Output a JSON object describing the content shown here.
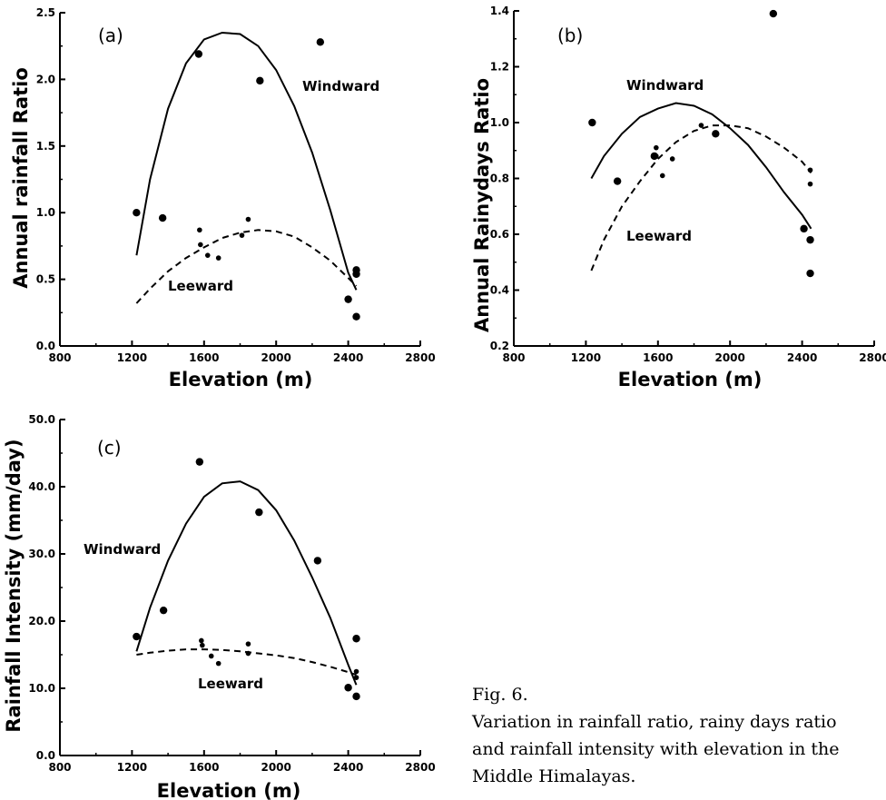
{
  "chart_data": [
    {
      "type": "scatter",
      "panel": "(a)",
      "xlabel": "Elevation (m)",
      "ylabel": "Annual rainfall Ratio",
      "xlim": [
        800,
        2800
      ],
      "ylim": [
        0,
        2.5
      ],
      "xticks": [
        800,
        1200,
        1600,
        2000,
        2400,
        2800
      ],
      "yticks": [
        0,
        0.5,
        1,
        1.5,
        2,
        2.5
      ],
      "ytick_labels": [
        "0.0",
        "0.5",
        "1.0",
        "1.5",
        "2.0",
        "2.5"
      ],
      "series": [
        {
          "name": "Windward",
          "marker": "large-dot",
          "line": "solid",
          "points": [
            [
              1225,
              1.0
            ],
            [
              1370,
              0.96
            ],
            [
              1570,
              2.19
            ],
            [
              1910,
              1.99
            ],
            [
              2245,
              2.28
            ],
            [
              2400,
              0.35
            ],
            [
              2445,
              0.57
            ],
            [
              2445,
              0.54
            ],
            [
              2445,
              0.22
            ]
          ],
          "curve": [
            [
              1225,
              0.68
            ],
            [
              1300,
              1.25
            ],
            [
              1400,
              1.78
            ],
            [
              1500,
              2.12
            ],
            [
              1600,
              2.3
            ],
            [
              1700,
              2.35
            ],
            [
              1800,
              2.34
            ],
            [
              1900,
              2.25
            ],
            [
              2000,
              2.07
            ],
            [
              2100,
              1.8
            ],
            [
              2200,
              1.45
            ],
            [
              2300,
              1.02
            ],
            [
              2400,
              0.55
            ],
            [
              2445,
              0.42
            ]
          ]
        },
        {
          "name": "Leeward",
          "marker": "small-dot",
          "line": "dashed",
          "points": [
            [
              1575,
              0.87
            ],
            [
              1580,
              0.76
            ],
            [
              1620,
              0.68
            ],
            [
              1680,
              0.66
            ],
            [
              1810,
              0.83
            ],
            [
              1845,
              0.95
            ],
            [
              2445,
              0.53
            ]
          ],
          "curve": [
            [
              1225,
              0.32
            ],
            [
              1300,
              0.43
            ],
            [
              1400,
              0.56
            ],
            [
              1500,
              0.66
            ],
            [
              1600,
              0.74
            ],
            [
              1700,
              0.81
            ],
            [
              1800,
              0.85
            ],
            [
              1900,
              0.87
            ],
            [
              2000,
              0.86
            ],
            [
              2100,
              0.82
            ],
            [
              2200,
              0.74
            ],
            [
              2300,
              0.64
            ],
            [
              2400,
              0.51
            ],
            [
              2445,
              0.45
            ]
          ]
        }
      ]
    },
    {
      "type": "scatter",
      "panel": "(b)",
      "xlabel": "Elevation (m)",
      "ylabel": "Annual Rainydays Ratio",
      "xlim": [
        800,
        2800
      ],
      "ylim": [
        0.2,
        1.4
      ],
      "xticks": [
        800,
        1200,
        1600,
        2000,
        2400,
        2800
      ],
      "yticks": [
        0.2,
        0.4,
        0.6,
        0.8,
        1.0,
        1.2,
        1.4
      ],
      "ytick_labels": [
        "0.2",
        "0.4",
        "0.6",
        "0.8",
        "1.0",
        "1.2",
        "1.4"
      ],
      "series": [
        {
          "name": "Windward",
          "marker": "large-dot",
          "line": "solid",
          "points": [
            [
              1235,
              1.0
            ],
            [
              1375,
              0.79
            ],
            [
              1580,
              0.88
            ],
            [
              1920,
              0.96
            ],
            [
              2240,
              1.39
            ],
            [
              2410,
              0.62
            ],
            [
              2445,
              0.58
            ],
            [
              2445,
              0.46
            ]
          ],
          "curve": [
            [
              1230,
              0.8
            ],
            [
              1300,
              0.88
            ],
            [
              1400,
              0.96
            ],
            [
              1500,
              1.02
            ],
            [
              1600,
              1.05
            ],
            [
              1700,
              1.07
            ],
            [
              1800,
              1.06
            ],
            [
              1900,
              1.03
            ],
            [
              2000,
              0.98
            ],
            [
              2100,
              0.92
            ],
            [
              2200,
              0.84
            ],
            [
              2300,
              0.75
            ],
            [
              2400,
              0.67
            ],
            [
              2450,
              0.62
            ]
          ]
        },
        {
          "name": "Leeward",
          "marker": "small-dot",
          "line": "dashed",
          "points": [
            [
              1590,
              0.91
            ],
            [
              1590,
              0.88
            ],
            [
              1625,
              0.81
            ],
            [
              1680,
              0.87
            ],
            [
              1840,
              0.99
            ],
            [
              2445,
              0.83
            ],
            [
              2445,
              0.78
            ]
          ],
          "curve": [
            [
              1230,
              0.47
            ],
            [
              1300,
              0.58
            ],
            [
              1400,
              0.7
            ],
            [
              1500,
              0.79
            ],
            [
              1600,
              0.87
            ],
            [
              1700,
              0.93
            ],
            [
              1800,
              0.97
            ],
            [
              1900,
              0.99
            ],
            [
              2000,
              0.99
            ],
            [
              2100,
              0.98
            ],
            [
              2200,
              0.95
            ],
            [
              2300,
              0.91
            ],
            [
              2400,
              0.86
            ],
            [
              2450,
              0.82
            ]
          ]
        }
      ]
    },
    {
      "type": "scatter",
      "panel": "(c)",
      "xlabel": "Elevation (m)",
      "ylabel": "Rainfall Intensity (mm/day)",
      "xlim": [
        800,
        2800
      ],
      "ylim": [
        0,
        50
      ],
      "xticks": [
        800,
        1200,
        1600,
        2000,
        2400,
        2800
      ],
      "yticks": [
        0,
        10,
        20,
        30,
        40,
        50
      ],
      "ytick_labels": [
        "0.0",
        "10.0",
        "20.0",
        "30.0",
        "40.0",
        "50.0"
      ],
      "series": [
        {
          "name": "Windward",
          "marker": "large-dot",
          "line": "solid",
          "points": [
            [
              1225,
              17.7
            ],
            [
              1375,
              21.6
            ],
            [
              1575,
              43.7
            ],
            [
              1905,
              36.2
            ],
            [
              2230,
              29.0
            ],
            [
              2400,
              10.1
            ],
            [
              2445,
              17.4
            ],
            [
              2445,
              8.8
            ]
          ],
          "curve": [
            [
              1225,
              15.5
            ],
            [
              1300,
              22.0
            ],
            [
              1400,
              29.0
            ],
            [
              1500,
              34.5
            ],
            [
              1600,
              38.5
            ],
            [
              1700,
              40.5
            ],
            [
              1800,
              40.8
            ],
            [
              1900,
              39.5
            ],
            [
              2000,
              36.5
            ],
            [
              2100,
              32.0
            ],
            [
              2200,
              26.5
            ],
            [
              2300,
              20.5
            ],
            [
              2400,
              13.5
            ],
            [
              2445,
              10.5
            ]
          ]
        },
        {
          "name": "Leeward",
          "marker": "small-dot",
          "line": "dashed",
          "points": [
            [
              1585,
              17.1
            ],
            [
              1590,
              16.4
            ],
            [
              1640,
              14.8
            ],
            [
              1680,
              13.7
            ],
            [
              1845,
              16.6
            ],
            [
              1845,
              15.2
            ],
            [
              2445,
              12.5
            ],
            [
              2445,
              11.6
            ]
          ],
          "curve": [
            [
              1225,
              15.0
            ],
            [
              1300,
              15.3
            ],
            [
              1400,
              15.6
            ],
            [
              1500,
              15.8
            ],
            [
              1600,
              15.8
            ],
            [
              1700,
              15.7
            ],
            [
              1800,
              15.5
            ],
            [
              1900,
              15.2
            ],
            [
              2000,
              14.9
            ],
            [
              2100,
              14.5
            ],
            [
              2200,
              13.9
            ],
            [
              2300,
              13.2
            ],
            [
              2400,
              12.4
            ],
            [
              2445,
              12.0
            ]
          ]
        }
      ]
    }
  ],
  "caption": {
    "title": "Fig. 6.",
    "lines": [
      "Variation in rainfall ratio, rainy days ratio",
      "and rainfall intensity with elevation in the",
      "Middle Himalayas."
    ]
  }
}
